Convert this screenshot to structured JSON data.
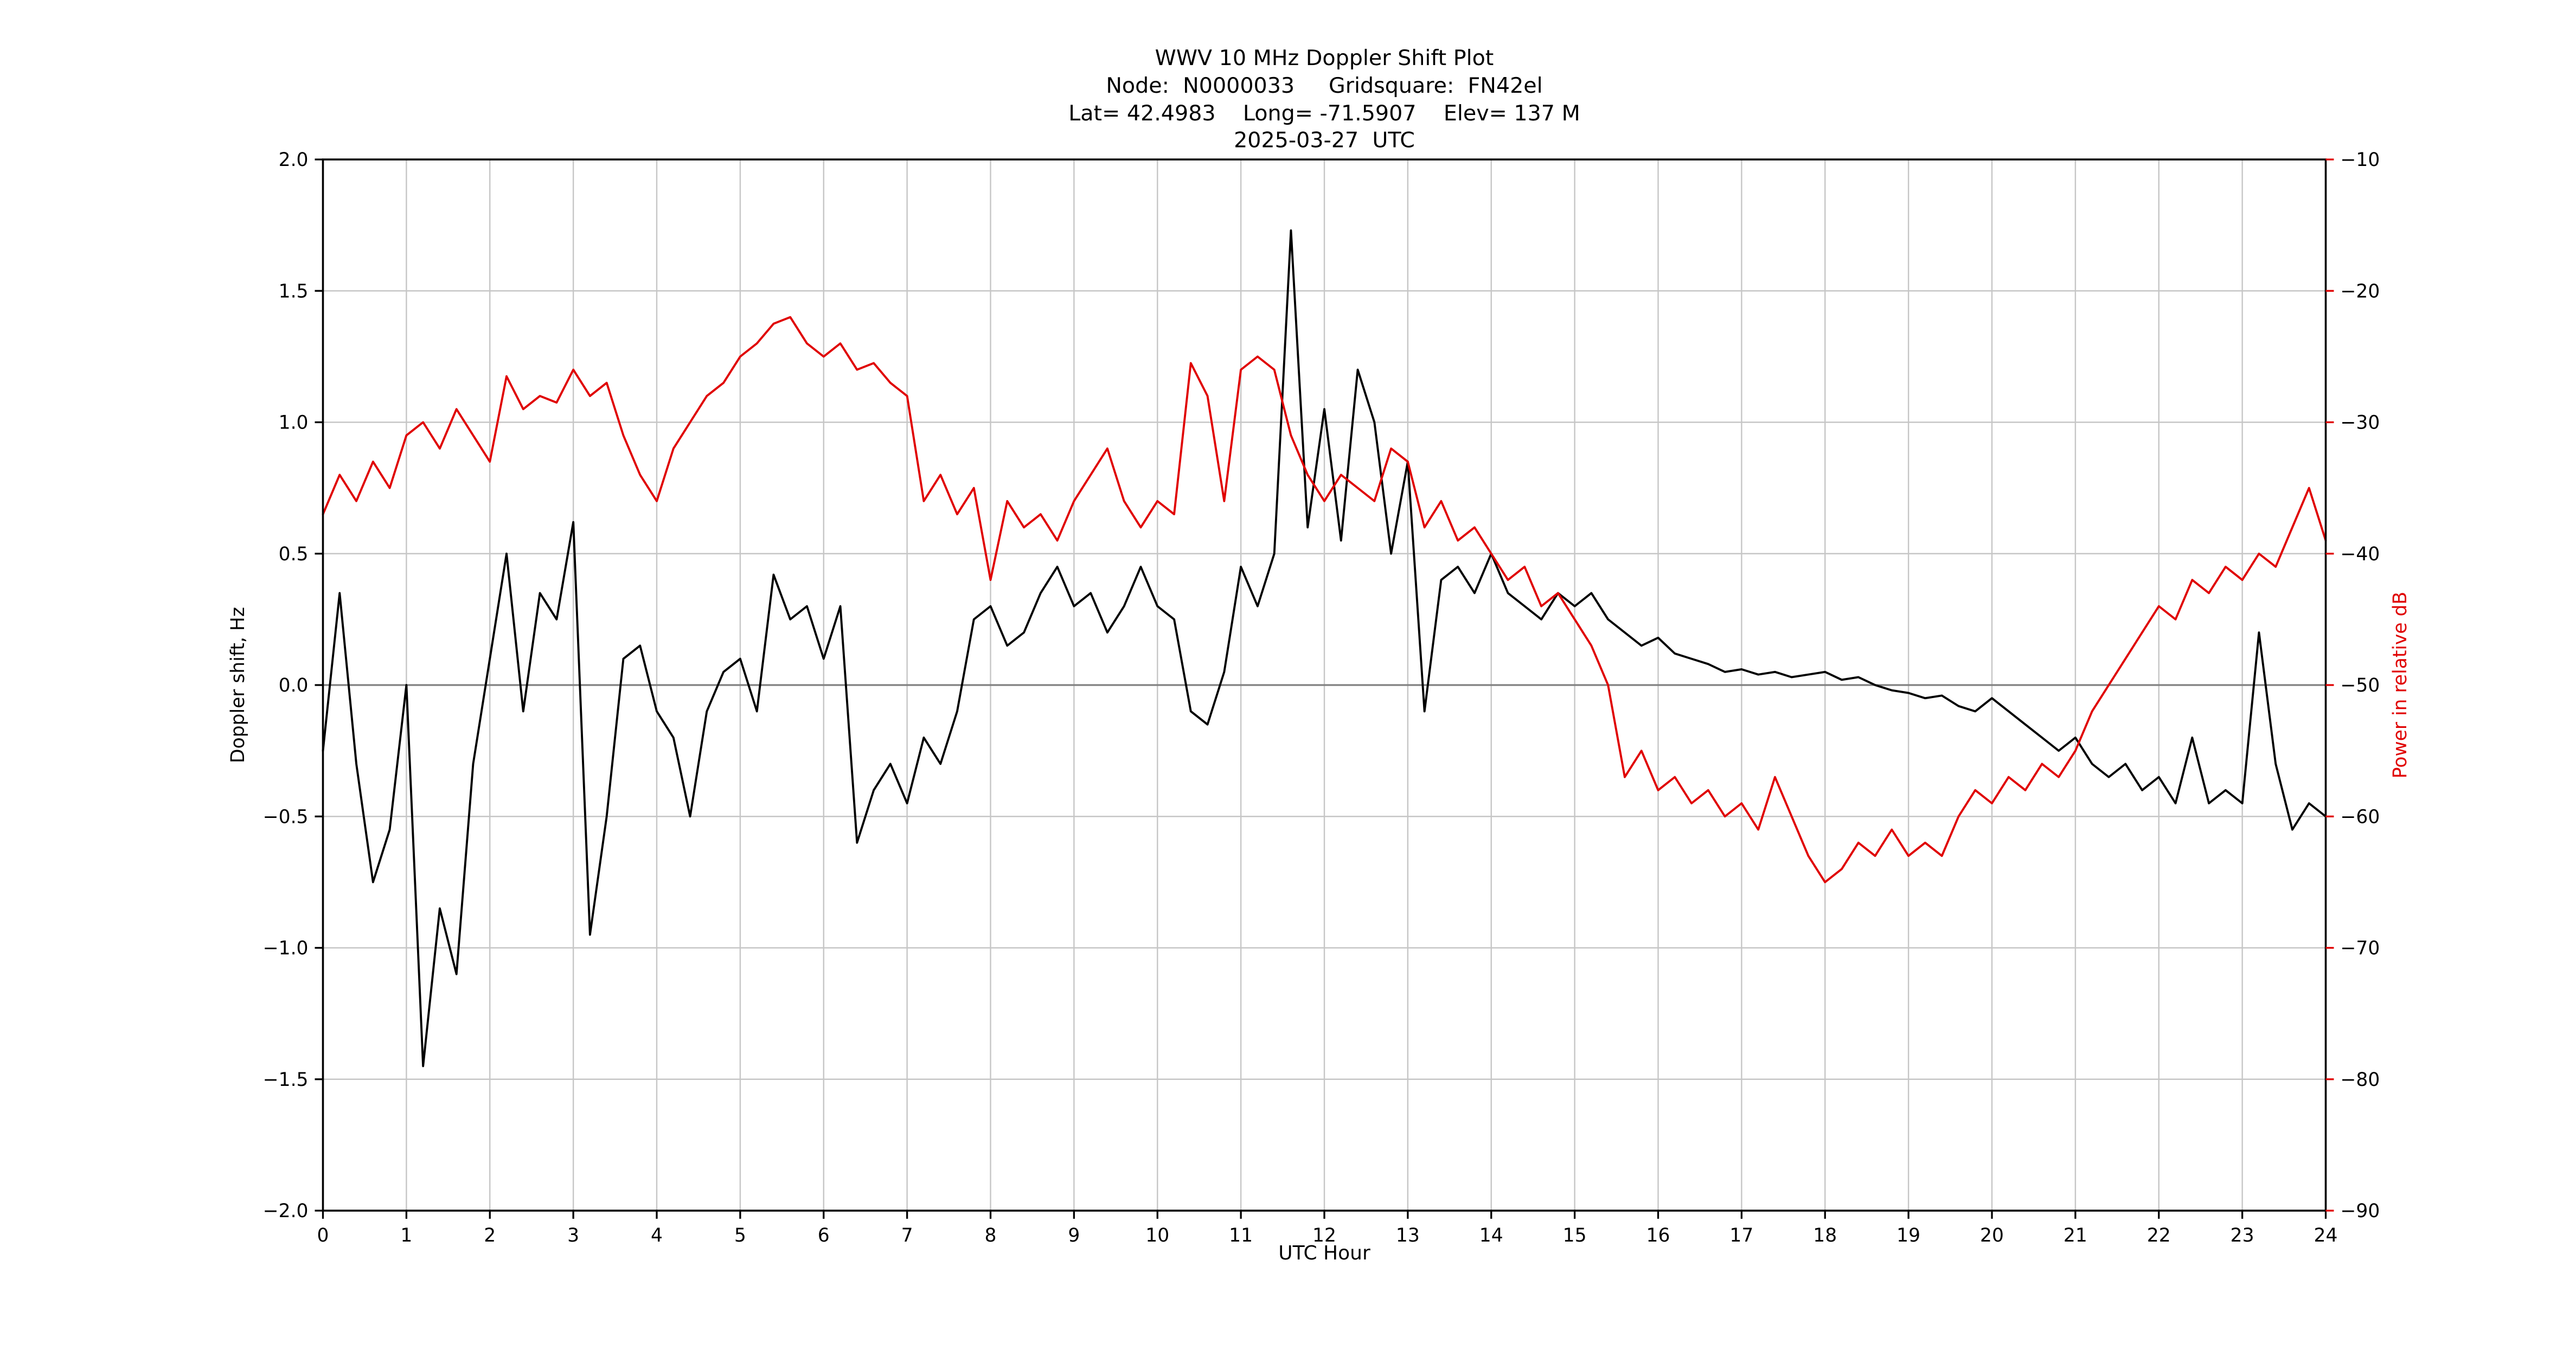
{
  "colors": {
    "doppler": "#000000",
    "power": "#e00000",
    "grid": "#c6c6c6",
    "zero_line": "#808080",
    "axis": "#000000",
    "background": "#ffffff"
  },
  "chart_data": {
    "type": "line",
    "title": "WWV 10 MHz Doppler Shift Plot",
    "subtitle_lines": [
      "Node:  N0000033     Gridsquare:  FN42el",
      "Lat= 42.4983    Long= -71.5907    Elev= 137 M",
      "2025-03-27  UTC"
    ],
    "xlabel": "UTC Hour",
    "ylabel_left": "Doppler shift, Hz",
    "ylabel_right": "Power in relative dB",
    "xlim": [
      0,
      24
    ],
    "ylim_left": [
      -2.0,
      2.0
    ],
    "ylim_right": [
      -90,
      -10
    ],
    "grid": true,
    "legend": "none",
    "x_ticks": {
      "values": [
        0,
        1,
        2,
        3,
        4,
        5,
        6,
        7,
        8,
        9,
        10,
        11,
        12,
        13,
        14,
        15,
        16,
        17,
        18,
        19,
        20,
        21,
        22,
        23,
        24
      ],
      "labels": [
        "0",
        "1",
        "2",
        "3",
        "4",
        "5",
        "6",
        "7",
        "8",
        "9",
        "10",
        "11",
        "12",
        "13",
        "14",
        "15",
        "16",
        "17",
        "18",
        "19",
        "20",
        "21",
        "22",
        "23",
        "24"
      ]
    },
    "y_ticks_left": {
      "values": [
        2.0,
        1.5,
        1.0,
        0.5,
        0.0,
        -0.5,
        -1.0,
        -1.5,
        -2.0
      ],
      "labels": [
        "2.0",
        "1.5",
        "1.0",
        "0.5",
        "0.0",
        "−0.5",
        "−1.0",
        "−1.5",
        "−2.0"
      ]
    },
    "y_ticks_right": {
      "values": [
        -10,
        -20,
        -30,
        -40,
        -50,
        -60,
        -70,
        -80,
        -90
      ],
      "labels": [
        "−10",
        "−20",
        "−30",
        "−40",
        "−50",
        "−60",
        "−70",
        "−80",
        "−90"
      ]
    },
    "series": [
      {
        "name": "Doppler shift, Hz",
        "axis": "left",
        "color": "#000000",
        "x_start": 0,
        "x_step": 0.2,
        "y": [
          -0.25,
          0.35,
          -0.3,
          -0.75,
          -0.55,
          0.0,
          -1.45,
          -0.85,
          -1.1,
          -0.3,
          0.1,
          0.5,
          -0.1,
          0.35,
          0.25,
          0.62,
          -0.95,
          -0.5,
          0.1,
          0.15,
          -0.1,
          -0.2,
          -0.5,
          -0.1,
          0.05,
          0.1,
          -0.1,
          0.42,
          0.25,
          0.3,
          0.1,
          0.3,
          -0.6,
          -0.4,
          -0.3,
          -0.45,
          -0.2,
          -0.3,
          -0.1,
          0.25,
          0.3,
          0.15,
          0.2,
          0.35,
          0.45,
          0.3,
          0.35,
          0.2,
          0.3,
          0.45,
          0.3,
          0.25,
          -0.1,
          -0.15,
          0.05,
          0.45,
          0.3,
          0.5,
          1.73,
          0.6,
          1.05,
          0.55,
          1.2,
          1.0,
          0.5,
          0.85,
          -0.1,
          0.4,
          0.45,
          0.35,
          0.5,
          0.35,
          0.3,
          0.25,
          0.35,
          0.3,
          0.35,
          0.25,
          0.2,
          0.15,
          0.18,
          0.12,
          0.1,
          0.08,
          0.05,
          0.06,
          0.04,
          0.05,
          0.03,
          0.04,
          0.05,
          0.02,
          0.03,
          0.0,
          -0.02,
          -0.03,
          -0.05,
          -0.04,
          -0.08,
          -0.1,
          -0.05,
          -0.1,
          -0.15,
          -0.2,
          -0.25,
          -0.2,
          -0.3,
          -0.35,
          -0.3,
          -0.4,
          -0.35,
          -0.45,
          -0.2,
          -0.45,
          -0.4,
          -0.45,
          0.2,
          -0.3,
          -0.55,
          -0.45,
          -0.5
        ]
      },
      {
        "name": "Power in relative dB",
        "axis": "right",
        "color": "#e00000",
        "x_start": 0,
        "x_step": 0.2,
        "y": [
          -37,
          -34,
          -36,
          -33,
          -35,
          -31,
          -30,
          -32,
          -29,
          -31,
          -33,
          -26.5,
          -29,
          -28,
          -28.5,
          -26,
          -28,
          -27,
          -31,
          -34,
          -36,
          -32,
          -30,
          -28,
          -27,
          -25,
          -24,
          -22.5,
          -22,
          -24,
          -25,
          -24,
          -26,
          -25.5,
          -27,
          -28,
          -36,
          -34,
          -37,
          -35,
          -42,
          -36,
          -38,
          -37,
          -39,
          -36,
          -34,
          -32,
          -36,
          -38,
          -36,
          -37,
          -25.5,
          -28,
          -36,
          -26,
          -25,
          -26,
          -31,
          -34,
          -36,
          -34,
          -35,
          -36,
          -32,
          -33,
          -38,
          -36,
          -39,
          -38,
          -40,
          -42,
          -41,
          -44,
          -43,
          -45,
          -47,
          -50,
          -57,
          -55,
          -58,
          -57,
          -59,
          -58,
          -60,
          -59,
          -61,
          -57,
          -60,
          -63,
          -65,
          -64,
          -62,
          -63,
          -61,
          -63,
          -62,
          -63,
          -60,
          -58,
          -59,
          -57,
          -58,
          -56,
          -57,
          -55,
          -52,
          -50,
          -48,
          -46,
          -44,
          -45,
          -42,
          -43,
          -41,
          -42,
          -40,
          -41,
          -38,
          -35,
          -39
        ]
      }
    ]
  }
}
